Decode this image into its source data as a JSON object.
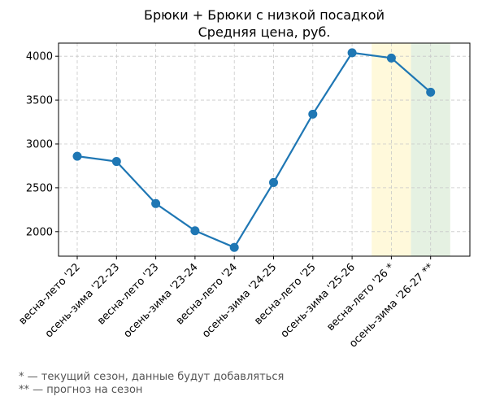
{
  "chart_data": {
    "type": "line",
    "title": "Брюки + Брюки с низкой посадкой",
    "subtitle": "Средняя цена, руб.",
    "xlabel": "",
    "ylabel": "",
    "categories": [
      "весна-лето '22",
      "осень-зима '22-23",
      "весна-лето '23",
      "осень-зима '23-24",
      "весна-лето '24",
      "осень-зима '24-25",
      "весна-лето '25",
      "осень-зима '25-26",
      "весна-лето '26 *",
      "осень-зима '26-27 **"
    ],
    "series": [
      {
        "values": [
          2860,
          2800,
          2320,
          2010,
          1820,
          2560,
          3340,
          4040,
          3980,
          3590
        ]
      }
    ],
    "ylim": [
      1720,
      4150
    ],
    "yticks": [
      2000,
      2500,
      3000,
      3500,
      4000
    ],
    "grid": true,
    "highlights": [
      {
        "category_index": 8,
        "color": "#fff9db"
      },
      {
        "category_index": 9,
        "color": "#e5f1e2"
      }
    ],
    "line_color": "#1f77b4"
  },
  "footnotes": {
    "current": "* — текущий сезон, данные будут добавляться",
    "forecast": "** — прогноз на сезон"
  }
}
